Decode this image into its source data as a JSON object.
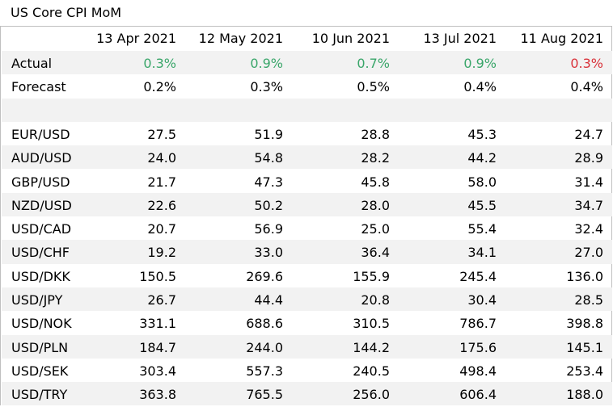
{
  "title": "US Core CPI MoM",
  "colors": {
    "positive": "#3aa66a",
    "negative": "#d9323a",
    "shade": "#f2f2f2",
    "text": "#000000"
  },
  "headers": [
    "13 Apr 2021",
    "12 May 2021",
    "10 Jun 2021",
    "13 Jul 2021",
    "11 Aug 2021"
  ],
  "actual": {
    "label": "Actual",
    "values": [
      "0.3%",
      "0.9%",
      "0.7%",
      "0.9%",
      "0.3%"
    ],
    "colors": [
      "#3aa66a",
      "#3aa66a",
      "#3aa66a",
      "#3aa66a",
      "#d9323a"
    ]
  },
  "forecast": {
    "label": "Forecast",
    "values": [
      "0.2%",
      "0.3%",
      "0.5%",
      "0.4%",
      "0.4%"
    ]
  },
  "pairs": [
    {
      "label": "EUR/USD",
      "values": [
        "27.5",
        "51.9",
        "28.8",
        "45.3",
        "24.7"
      ]
    },
    {
      "label": "AUD/USD",
      "values": [
        "24.0",
        "54.8",
        "28.2",
        "44.2",
        "28.9"
      ]
    },
    {
      "label": "GBP/USD",
      "values": [
        "21.7",
        "47.3",
        "45.8",
        "58.0",
        "31.4"
      ]
    },
    {
      "label": "NZD/USD",
      "values": [
        "22.6",
        "50.2",
        "28.0",
        "45.5",
        "34.7"
      ]
    },
    {
      "label": "USD/CAD",
      "values": [
        "20.7",
        "56.9",
        "25.0",
        "55.4",
        "32.4"
      ]
    },
    {
      "label": "USD/CHF",
      "values": [
        "19.2",
        "33.0",
        "36.4",
        "34.1",
        "27.0"
      ]
    },
    {
      "label": "USD/DKK",
      "values": [
        "150.5",
        "269.6",
        "155.9",
        "245.4",
        "136.0"
      ]
    },
    {
      "label": "USD/JPY",
      "values": [
        "26.7",
        "44.4",
        "20.8",
        "30.4",
        "28.5"
      ]
    },
    {
      "label": "USD/NOK",
      "values": [
        "331.1",
        "688.6",
        "310.5",
        "786.7",
        "398.8"
      ]
    },
    {
      "label": "USD/PLN",
      "values": [
        "184.7",
        "244.0",
        "144.2",
        "175.6",
        "145.1"
      ]
    },
    {
      "label": "USD/SEK",
      "values": [
        "303.4",
        "557.3",
        "240.5",
        "498.4",
        "253.4"
      ]
    },
    {
      "label": "USD/TRY",
      "values": [
        "363.8",
        "765.5",
        "256.0",
        "606.4",
        "188.0"
      ]
    }
  ]
}
